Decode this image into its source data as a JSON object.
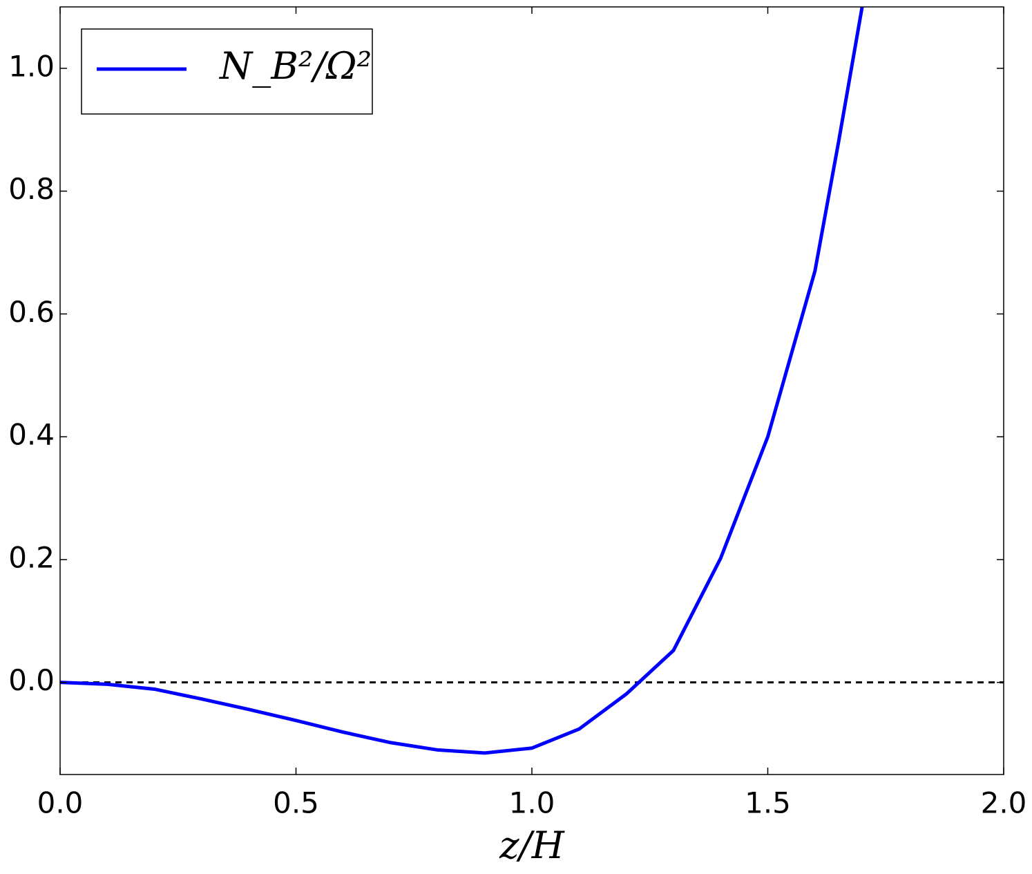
{
  "chart_data": {
    "type": "line",
    "x_label": "z/H",
    "x": [
      0,
      0.1,
      0.2,
      0.3,
      0.4,
      0.5,
      0.6,
      0.7,
      0.8,
      0.9,
      1.0,
      1.1,
      1.2,
      1.3,
      1.4,
      1.5,
      1.6,
      1.65,
      1.7
    ],
    "series": [
      {
        "name": "N_B²/Ω²",
        "color": "#0000ff",
        "values": [
          0,
          -0.003,
          -0.011,
          -0.027,
          -0.044,
          -0.062,
          -0.081,
          -0.098,
          -0.11,
          -0.115,
          -0.107,
          -0.076,
          -0.019,
          0.052,
          0.202,
          0.4,
          0.67,
          0.88,
          1.1
        ]
      }
    ],
    "hline": 0,
    "xlim": [
      0,
      2
    ],
    "ylim": [
      -0.15,
      1.1
    ],
    "xticks": [
      {
        "value": 0,
        "label": "0.0"
      },
      0.5,
      {
        "value": 1,
        "label": "1.0"
      },
      1.5,
      {
        "value": 2,
        "label": "2.0"
      }
    ],
    "yticks": [
      {
        "value": 0,
        "label": "0.0"
      },
      0.2,
      0.4,
      0.6,
      0.8,
      {
        "value": 1,
        "label": "1.0"
      }
    ],
    "legend": "upper left"
  }
}
